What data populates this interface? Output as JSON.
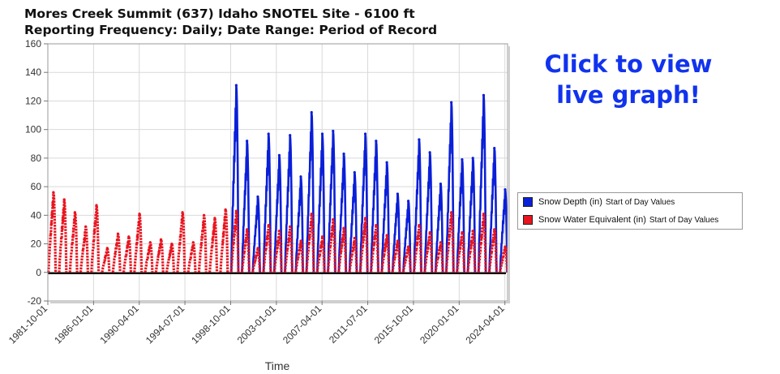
{
  "header": {
    "title": "Mores Creek Summit (637) Idaho SNOTEL Site - 6100 ft",
    "subtitle": "Reporting Frequency: Daily; Date Range: Period of Record"
  },
  "cta": {
    "line1": "Click to view",
    "line2": "live graph!"
  },
  "colors": {
    "snow_depth": "#0a1fd8",
    "swe": "#e8141e",
    "cta": "#1133ee",
    "grid": "#d9d9d9"
  },
  "legend": {
    "items": [
      {
        "label": "Snow Depth (in)",
        "sub": "Start of Day Values",
        "color": "#0a1fd8"
      },
      {
        "label": "Snow Water Equivalent (in)",
        "sub": "Start of Day Values",
        "color": "#e8141e"
      }
    ]
  },
  "chart_data": {
    "type": "line",
    "xlabel": "Time",
    "ylabel": "",
    "ylim": [
      -20,
      160
    ],
    "yticks": [
      -20,
      0,
      20,
      40,
      60,
      80,
      100,
      120,
      140,
      160
    ],
    "xlim": [
      "1981-10-01",
      "2024-07-01"
    ],
    "xticks": [
      "1981-10-01",
      "1986-01-01",
      "1990-04-01",
      "1994-07-01",
      "1998-10-01",
      "2003-01-01",
      "2007-04-01",
      "2011-07-01",
      "2015-10-01",
      "2020-01-01",
      "2024-04-01"
    ],
    "grid": true,
    "legend_position": "right",
    "series": [
      {
        "name": "Snow Depth (in) Start of Day Values",
        "peaks": [
          {
            "year": 1999,
            "value": 131
          },
          {
            "year": 2000,
            "value": 92
          },
          {
            "year": 2001,
            "value": 53
          },
          {
            "year": 2002,
            "value": 97
          },
          {
            "year": 2003,
            "value": 82
          },
          {
            "year": 2004,
            "value": 96
          },
          {
            "year": 2005,
            "value": 67
          },
          {
            "year": 2006,
            "value": 112
          },
          {
            "year": 2007,
            "value": 97
          },
          {
            "year": 2008,
            "value": 99
          },
          {
            "year": 2009,
            "value": 83
          },
          {
            "year": 2010,
            "value": 70
          },
          {
            "year": 2011,
            "value": 97
          },
          {
            "year": 2012,
            "value": 92
          },
          {
            "year": 2013,
            "value": 77
          },
          {
            "year": 2014,
            "value": 55
          },
          {
            "year": 2015,
            "value": 50
          },
          {
            "year": 2016,
            "value": 93
          },
          {
            "year": 2017,
            "value": 84
          },
          {
            "year": 2018,
            "value": 62
          },
          {
            "year": 2019,
            "value": 119
          },
          {
            "year": 2020,
            "value": 79
          },
          {
            "year": 2021,
            "value": 80
          },
          {
            "year": 2022,
            "value": 124
          },
          {
            "year": 2023,
            "value": 87
          },
          {
            "year": 2024,
            "value": 58
          }
        ]
      },
      {
        "name": "Snow Water Equivalent (in) Start of Day Values",
        "peaks": [
          {
            "year": 1982,
            "value": 56
          },
          {
            "year": 1983,
            "value": 51
          },
          {
            "year": 1984,
            "value": 42
          },
          {
            "year": 1985,
            "value": 32
          },
          {
            "year": 1986,
            "value": 47
          },
          {
            "year": 1987,
            "value": 17
          },
          {
            "year": 1988,
            "value": 27
          },
          {
            "year": 1989,
            "value": 25
          },
          {
            "year": 1990,
            "value": 41
          },
          {
            "year": 1991,
            "value": 21
          },
          {
            "year": 1992,
            "value": 23
          },
          {
            "year": 1993,
            "value": 20
          },
          {
            "year": 1994,
            "value": 42
          },
          {
            "year": 1995,
            "value": 21
          },
          {
            "year": 1996,
            "value": 40
          },
          {
            "year": 1997,
            "value": 38
          },
          {
            "year": 1998,
            "value": 44
          },
          {
            "year": 1999,
            "value": 43
          },
          {
            "year": 2000,
            "value": 30
          },
          {
            "year": 2001,
            "value": 17
          },
          {
            "year": 2002,
            "value": 33
          },
          {
            "year": 2003,
            "value": 29
          },
          {
            "year": 2004,
            "value": 32
          },
          {
            "year": 2005,
            "value": 22
          },
          {
            "year": 2006,
            "value": 41
          },
          {
            "year": 2007,
            "value": 25
          },
          {
            "year": 2008,
            "value": 37
          },
          {
            "year": 2009,
            "value": 31
          },
          {
            "year": 2010,
            "value": 24
          },
          {
            "year": 2011,
            "value": 38
          },
          {
            "year": 2012,
            "value": 33
          },
          {
            "year": 2013,
            "value": 26
          },
          {
            "year": 2014,
            "value": 22
          },
          {
            "year": 2015,
            "value": 18
          },
          {
            "year": 2016,
            "value": 33
          },
          {
            "year": 2017,
            "value": 28
          },
          {
            "year": 2018,
            "value": 21
          },
          {
            "year": 2019,
            "value": 42
          },
          {
            "year": 2020,
            "value": 28
          },
          {
            "year": 2021,
            "value": 29
          },
          {
            "year": 2022,
            "value": 41
          },
          {
            "year": 2023,
            "value": 30
          },
          {
            "year": 2024,
            "value": 18
          }
        ]
      }
    ]
  }
}
